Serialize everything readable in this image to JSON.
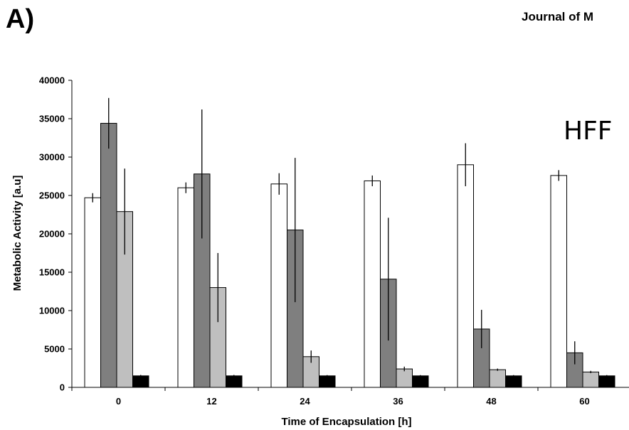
{
  "panel_label": "A)",
  "journal_header": "Journal of M",
  "chart_data": {
    "type": "bar",
    "annotation": "HFF",
    "xlabel": "Time of Encapsulation [h]",
    "ylabel": "Metabolic Activity [a.u]",
    "categories": [
      "0",
      "12",
      "24",
      "36",
      "48",
      "60"
    ],
    "ylim": [
      0,
      40000
    ],
    "yticks": [
      0,
      5000,
      10000,
      15000,
      20000,
      25000,
      30000,
      35000,
      40000
    ],
    "grid": false,
    "series": [
      {
        "color": "#ffffff",
        "values": [
          24700,
          26000,
          26500,
          26900,
          29000,
          27600
        ],
        "errors": [
          600,
          700,
          1400,
          700,
          2800,
          700
        ]
      },
      {
        "color": "#7f7f7f",
        "values": [
          34400,
          27800,
          20500,
          14100,
          7600,
          4500
        ],
        "errors": [
          3300,
          8400,
          9400,
          8000,
          2500,
          1500
        ]
      },
      {
        "color": "#bfbfbf",
        "values": [
          22900,
          13000,
          4000,
          2400,
          2300,
          2000
        ],
        "errors": [
          5600,
          4500,
          800,
          300,
          150,
          150
        ]
      },
      {
        "color": "#000000",
        "values": [
          1500,
          1500,
          1500,
          1500,
          1500,
          1500
        ],
        "errors": [
          120,
          120,
          100,
          100,
          100,
          100
        ]
      }
    ]
  }
}
